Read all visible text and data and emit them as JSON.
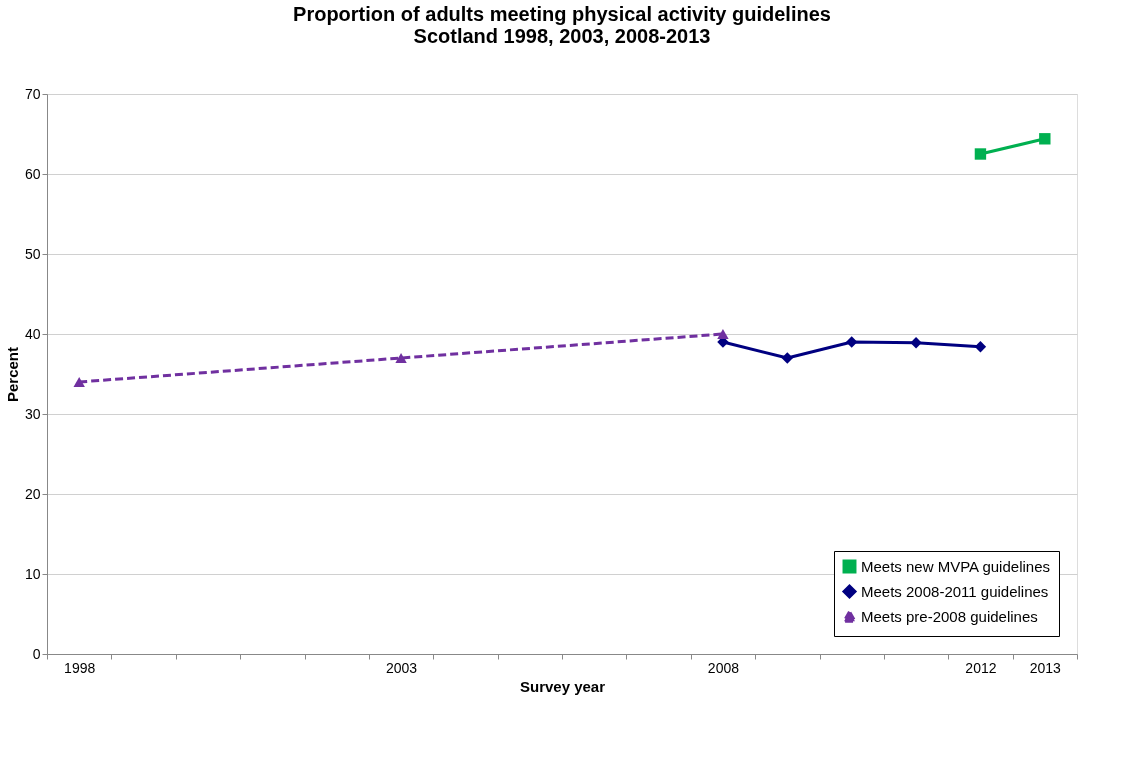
{
  "chart_data": {
    "type": "line",
    "title": "Proportion of adults meeting physical activity guidelines\nScotland 1998, 2003, 2008-2013",
    "xlabel": "Survey year",
    "ylabel": "Percent",
    "categories": [
      "1998",
      null,
      null,
      null,
      null,
      "2003",
      null,
      null,
      null,
      null,
      "2008",
      null,
      null,
      null,
      "2012",
      "2013"
    ],
    "ylim": [
      0,
      70
    ],
    "yticks": [
      0,
      10,
      20,
      30,
      40,
      50,
      60,
      70
    ],
    "grid": "y",
    "legend": "bottom right",
    "series": [
      {
        "name": "Meets new MVPA guidelines",
        "color": "#00b050",
        "marker": "square",
        "line_style": "solid",
        "values": [
          null,
          null,
          null,
          null,
          null,
          null,
          null,
          null,
          null,
          null,
          null,
          null,
          null,
          null,
          62.5,
          64.4
        ]
      },
      {
        "name": "Meets 2008-2011 guidelines",
        "color": "#000080",
        "marker": "diamond",
        "line_style": "solid",
        "values": [
          null,
          null,
          null,
          null,
          null,
          null,
          null,
          null,
          null,
          null,
          39,
          37,
          39,
          38.9,
          38.4,
          null
        ]
      },
      {
        "name": "Meets pre-2008 guidelines",
        "color": "#7030a0",
        "marker": "triangle",
        "line_style": "dashed",
        "values": [
          34,
          null,
          null,
          null,
          null,
          37,
          null,
          null,
          null,
          null,
          40,
          null,
          null,
          null,
          null,
          null
        ]
      }
    ]
  }
}
